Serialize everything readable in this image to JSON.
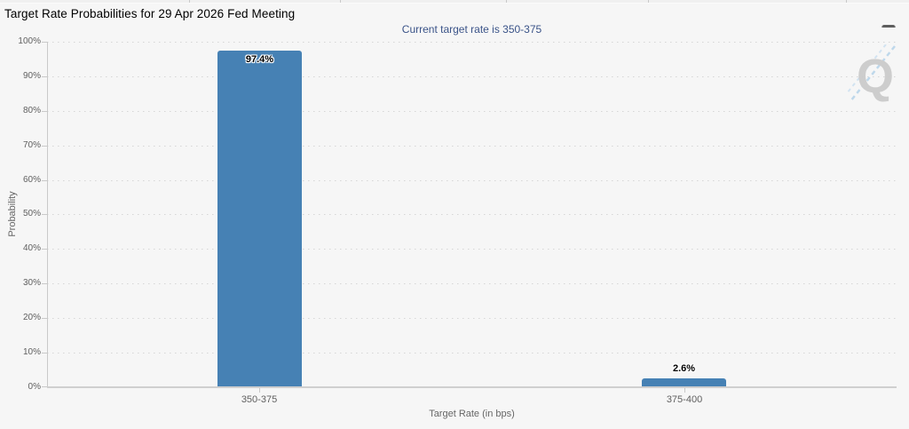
{
  "header": {
    "title": "Target Rate Probabilities for 29 Apr 2026 Fed Meeting",
    "menu_icon": "hamburger-icon"
  },
  "colors": {
    "background": "#f6f6f6",
    "bar": "#4681b4",
    "subtitle": "#3a5388",
    "axis_text": "#606060",
    "watermark_gray": "#c9c9c9",
    "watermark_blue": "#b9d5ea"
  },
  "chart_data": {
    "type": "bar",
    "title": "Target Rate Probabilities for 29 Apr 2026 Fed Meeting",
    "subtitle": "Current target rate is 350-375",
    "categories": [
      "350-375",
      "375-400"
    ],
    "values": [
      97.4,
      2.6
    ],
    "value_labels": [
      "97.4%",
      "2.6%"
    ],
    "xlabel": "Target Rate (in bps)",
    "ylabel": "Probability",
    "ylim": [
      0,
      100
    ],
    "ytick_step": 10,
    "ytick_labels": [
      "100%",
      "90%",
      "80%",
      "70%",
      "60%",
      "50%",
      "40%",
      "30%",
      "20%",
      "10%",
      "0%"
    ],
    "grid": "dotted horizontal gridlines, on",
    "legend": "none",
    "bar_color": "#4681b4",
    "watermark_letter": "Q"
  }
}
